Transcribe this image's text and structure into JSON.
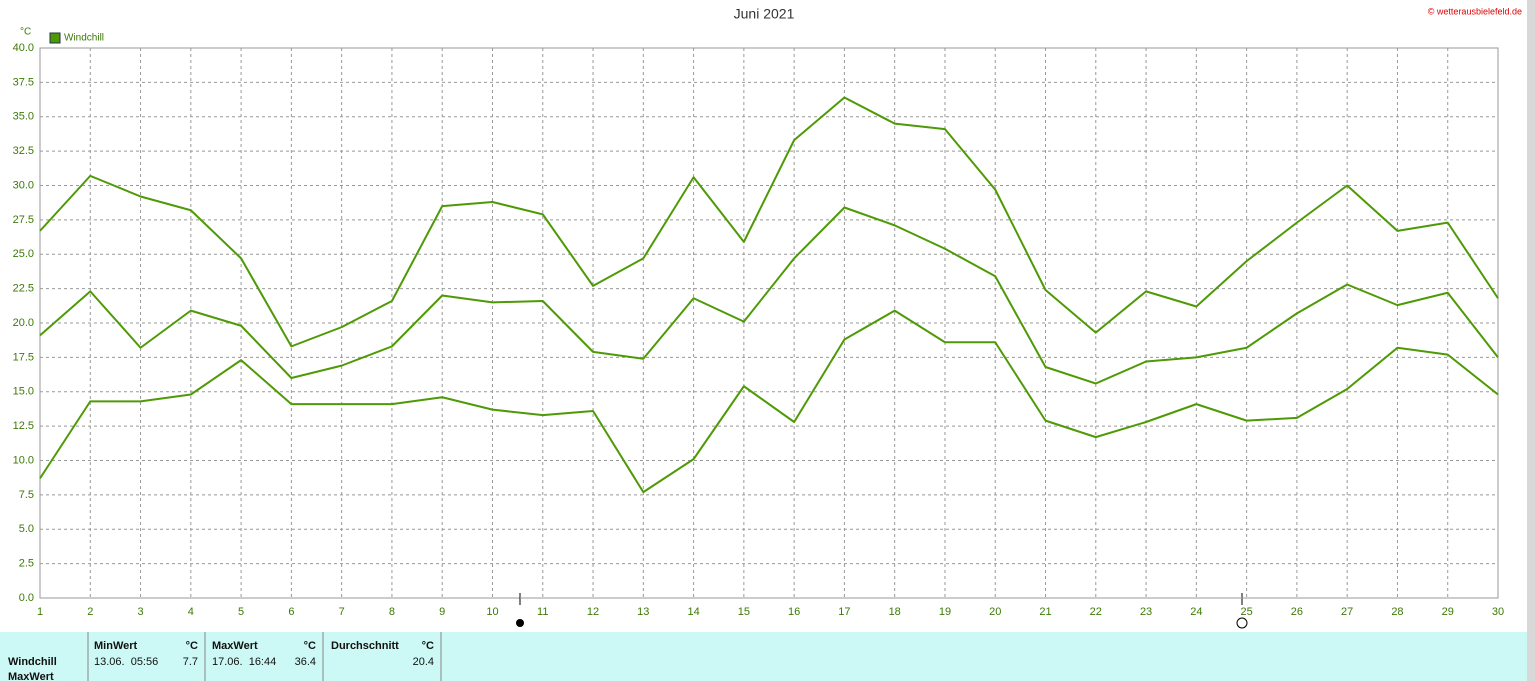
{
  "chart_data": {
    "type": "line",
    "title": "Juni 2021",
    "y_unit": "°C",
    "legend": "Windchill",
    "copyright": "© wetterausbielefeld.de",
    "x": [
      1,
      2,
      3,
      4,
      5,
      6,
      7,
      8,
      9,
      10,
      11,
      12,
      13,
      14,
      15,
      16,
      17,
      18,
      19,
      20,
      21,
      22,
      23,
      24,
      25,
      26,
      27,
      28,
      29,
      30
    ],
    "xlim": [
      1,
      30
    ],
    "ylim": [
      0,
      40
    ],
    "yticks": [
      {
        "value": 0,
        "label": "0.0"
      },
      {
        "value": 2.5,
        "label": "2.5"
      },
      {
        "value": 5,
        "label": "5.0"
      },
      {
        "value": 7.5,
        "label": "7.5"
      },
      {
        "value": 10,
        "label": "10.0"
      },
      {
        "value": 12.5,
        "label": "12.5"
      },
      {
        "value": 15,
        "label": "15.0"
      },
      {
        "value": 17.5,
        "label": "17.5"
      },
      {
        "value": 20,
        "label": "20.0"
      },
      {
        "value": 22.5,
        "label": "22.5"
      },
      {
        "value": 25,
        "label": "25.0"
      },
      {
        "value": 27.5,
        "label": "27.5"
      },
      {
        "value": 30,
        "label": "30.0"
      },
      {
        "value": 32.5,
        "label": "32.5"
      },
      {
        "value": 35,
        "label": "35.0"
      },
      {
        "value": 37.5,
        "label": "37.5"
      },
      {
        "value": 40,
        "label": "40.0"
      }
    ],
    "grid": true,
    "series": [
      {
        "color": "#4e9a06",
        "values": [
          26.7,
          30.7,
          29.2,
          28.2,
          24.7,
          18.3,
          19.7,
          21.6,
          28.5,
          28.8,
          27.9,
          22.7,
          24.7,
          30.6,
          25.9,
          33.3,
          36.4,
          34.5,
          34.1,
          29.7,
          22.4,
          19.3,
          22.3,
          21.2,
          24.5,
          27.3,
          30.0,
          26.7,
          27.3,
          21.8
        ]
      },
      {
        "color": "#4e9a06",
        "values": [
          19.1,
          22.3,
          18.2,
          20.9,
          19.8,
          16.0,
          16.9,
          18.3,
          22.0,
          21.5,
          21.6,
          17.9,
          17.4,
          21.8,
          20.1,
          24.7,
          28.4,
          27.1,
          25.4,
          23.4,
          16.8,
          15.6,
          17.2,
          17.5,
          18.2,
          20.7,
          22.8,
          21.3,
          22.2,
          17.5
        ]
      },
      {
        "color": "#4e9a06",
        "values": [
          8.7,
          14.3,
          14.3,
          14.8,
          17.3,
          14.1,
          14.1,
          14.1,
          14.6,
          13.7,
          13.3,
          13.6,
          7.7,
          10.1,
          15.4,
          12.8,
          18.8,
          20.9,
          18.6,
          18.6,
          12.9,
          11.7,
          12.8,
          14.1,
          12.9,
          13.1,
          15.2,
          18.2,
          17.7,
          14.8
        ]
      }
    ]
  },
  "summary": {
    "headers": {
      "min": "MinWert",
      "max": "MaxWert",
      "avg": "Durchschnitt",
      "unit": "°C"
    },
    "rows": [
      {
        "label": "Windchill",
        "min_time": "13.06.  05:56",
        "min": 7.7,
        "max_time": "17.06.  16:44",
        "max": 36.4,
        "avg": 20.4
      }
    ],
    "next_row_label": "MaxWert"
  }
}
